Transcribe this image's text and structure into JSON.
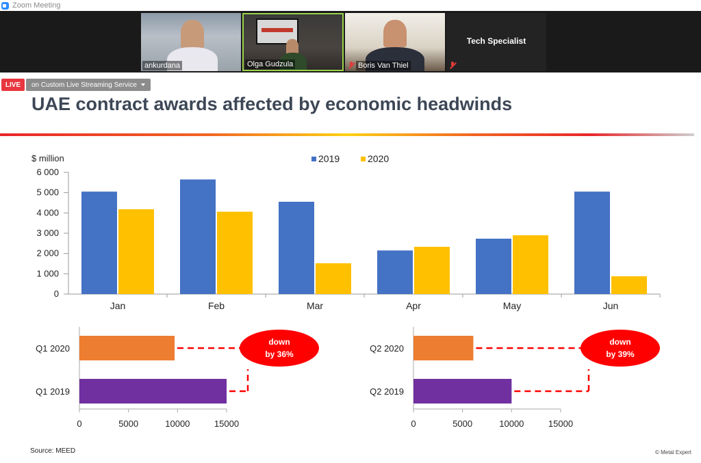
{
  "window": {
    "title": "Zoom Meeting"
  },
  "participants": [
    {
      "name": "ankurdana"
    },
    {
      "name": "Olga Gudzula"
    },
    {
      "name": "Boris Van Thiel"
    },
    {
      "name": "Tech Specialist"
    }
  ],
  "live": {
    "badge": "LIVE",
    "service": "on Custom Live Streaming Service"
  },
  "slide": {
    "title": "UAE contract awards affected by economic headwinds",
    "source": "Source: MEED",
    "copyright": "© Metal Expert"
  },
  "colors": {
    "series2019": "#4472c4",
    "series2020": "#ffc000",
    "q2020bar": "#ed7d31",
    "q2019bar": "#7030a0",
    "callout": "#ff0000"
  },
  "chart_data": [
    {
      "type": "bar",
      "title": "",
      "ylabel": "$ million",
      "categories": [
        "Jan",
        "Feb",
        "Mar",
        "Apr",
        "May",
        "Jun"
      ],
      "series": [
        {
          "name": "2019",
          "values": [
            5050,
            5650,
            4550,
            2150,
            2730,
            5050
          ]
        },
        {
          "name": "2020",
          "values": [
            4180,
            4060,
            1520,
            2330,
            2900,
            880
          ]
        }
      ],
      "ylim": [
        0,
        6000
      ],
      "yticks": [
        "0",
        "1 000",
        "2 000",
        "3 000",
        "4 000",
        "5 000",
        "6 000"
      ],
      "legend": "top-center"
    },
    {
      "type": "bar",
      "orientation": "horizontal",
      "categories": [
        "Q1 2020",
        "Q1 2019"
      ],
      "values": [
        9700,
        15000
      ],
      "xlim": [
        0,
        15000
      ],
      "xticks": [
        "0",
        "5000",
        "10000",
        "15000"
      ],
      "callout": [
        "down",
        "by 36%"
      ]
    },
    {
      "type": "bar",
      "orientation": "horizontal",
      "categories": [
        "Q2 2020",
        "Q2 2019"
      ],
      "values": [
        6100,
        10000
      ],
      "xlim": [
        0,
        15000
      ],
      "xticks": [
        "0",
        "5000",
        "10000",
        "15000"
      ],
      "callout": [
        "down",
        "by 39%"
      ]
    }
  ]
}
